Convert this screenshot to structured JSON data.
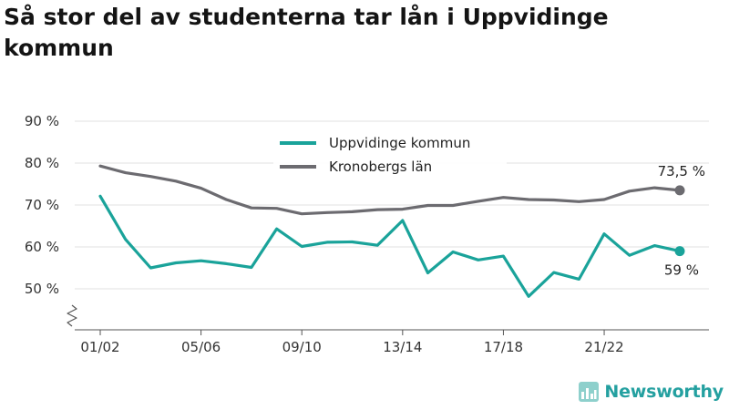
{
  "title": "Så stor del av studenterna tar lån i Uppvidinge kommun",
  "brand": {
    "name": "Newsworthy",
    "icon": "bar-chart-logo-icon",
    "color": "#24a0a0"
  },
  "chart_data": {
    "type": "line",
    "title": "Så stor del av studenterna tar lån i Uppvidinge kommun",
    "xlabel": "",
    "ylabel": "",
    "x": [
      "01/02",
      "02/03",
      "03/04",
      "04/05",
      "05/06",
      "06/07",
      "07/08",
      "08/09",
      "09/10",
      "10/11",
      "11/12",
      "12/13",
      "13/14",
      "14/15",
      "15/16",
      "16/17",
      "17/18",
      "18/19",
      "19/20",
      "20/21",
      "21/22",
      "22/23",
      "23/24",
      "24/25"
    ],
    "x_tick_labels": [
      "01/02",
      "05/06",
      "09/10",
      "13/14",
      "17/18",
      "21/22"
    ],
    "y_tick_values": [
      50,
      60,
      70,
      80,
      90
    ],
    "y_tick_labels": [
      "50 %",
      "60 %",
      "70 %",
      "80 %",
      "90 %"
    ],
    "ylim": [
      40,
      90
    ],
    "y_axis_break": true,
    "grid": "horizontal",
    "legend_position": "top-center",
    "series": [
      {
        "name": "Uppvidinge kommun",
        "color": "#1aa39a",
        "values": [
          72.1,
          61.8,
          55.0,
          56.2,
          56.7,
          56.0,
          55.1,
          64.3,
          60.1,
          61.1,
          61.2,
          60.4,
          66.3,
          53.8,
          58.8,
          56.9,
          57.8,
          48.2,
          53.9,
          52.3,
          63.1,
          58.0,
          60.3,
          59.0
        ],
        "end_label": "59 %"
      },
      {
        "name": "Kronobergs län",
        "color": "#6c6b70",
        "values": [
          79.3,
          77.7,
          76.8,
          75.7,
          74.0,
          71.3,
          69.3,
          69.2,
          67.9,
          68.2,
          68.4,
          68.9,
          69.0,
          69.9,
          69.9,
          70.9,
          71.8,
          71.3,
          71.2,
          70.8,
          71.3,
          73.3,
          74.1,
          73.5
        ],
        "end_label": "73,5 %"
      }
    ]
  }
}
